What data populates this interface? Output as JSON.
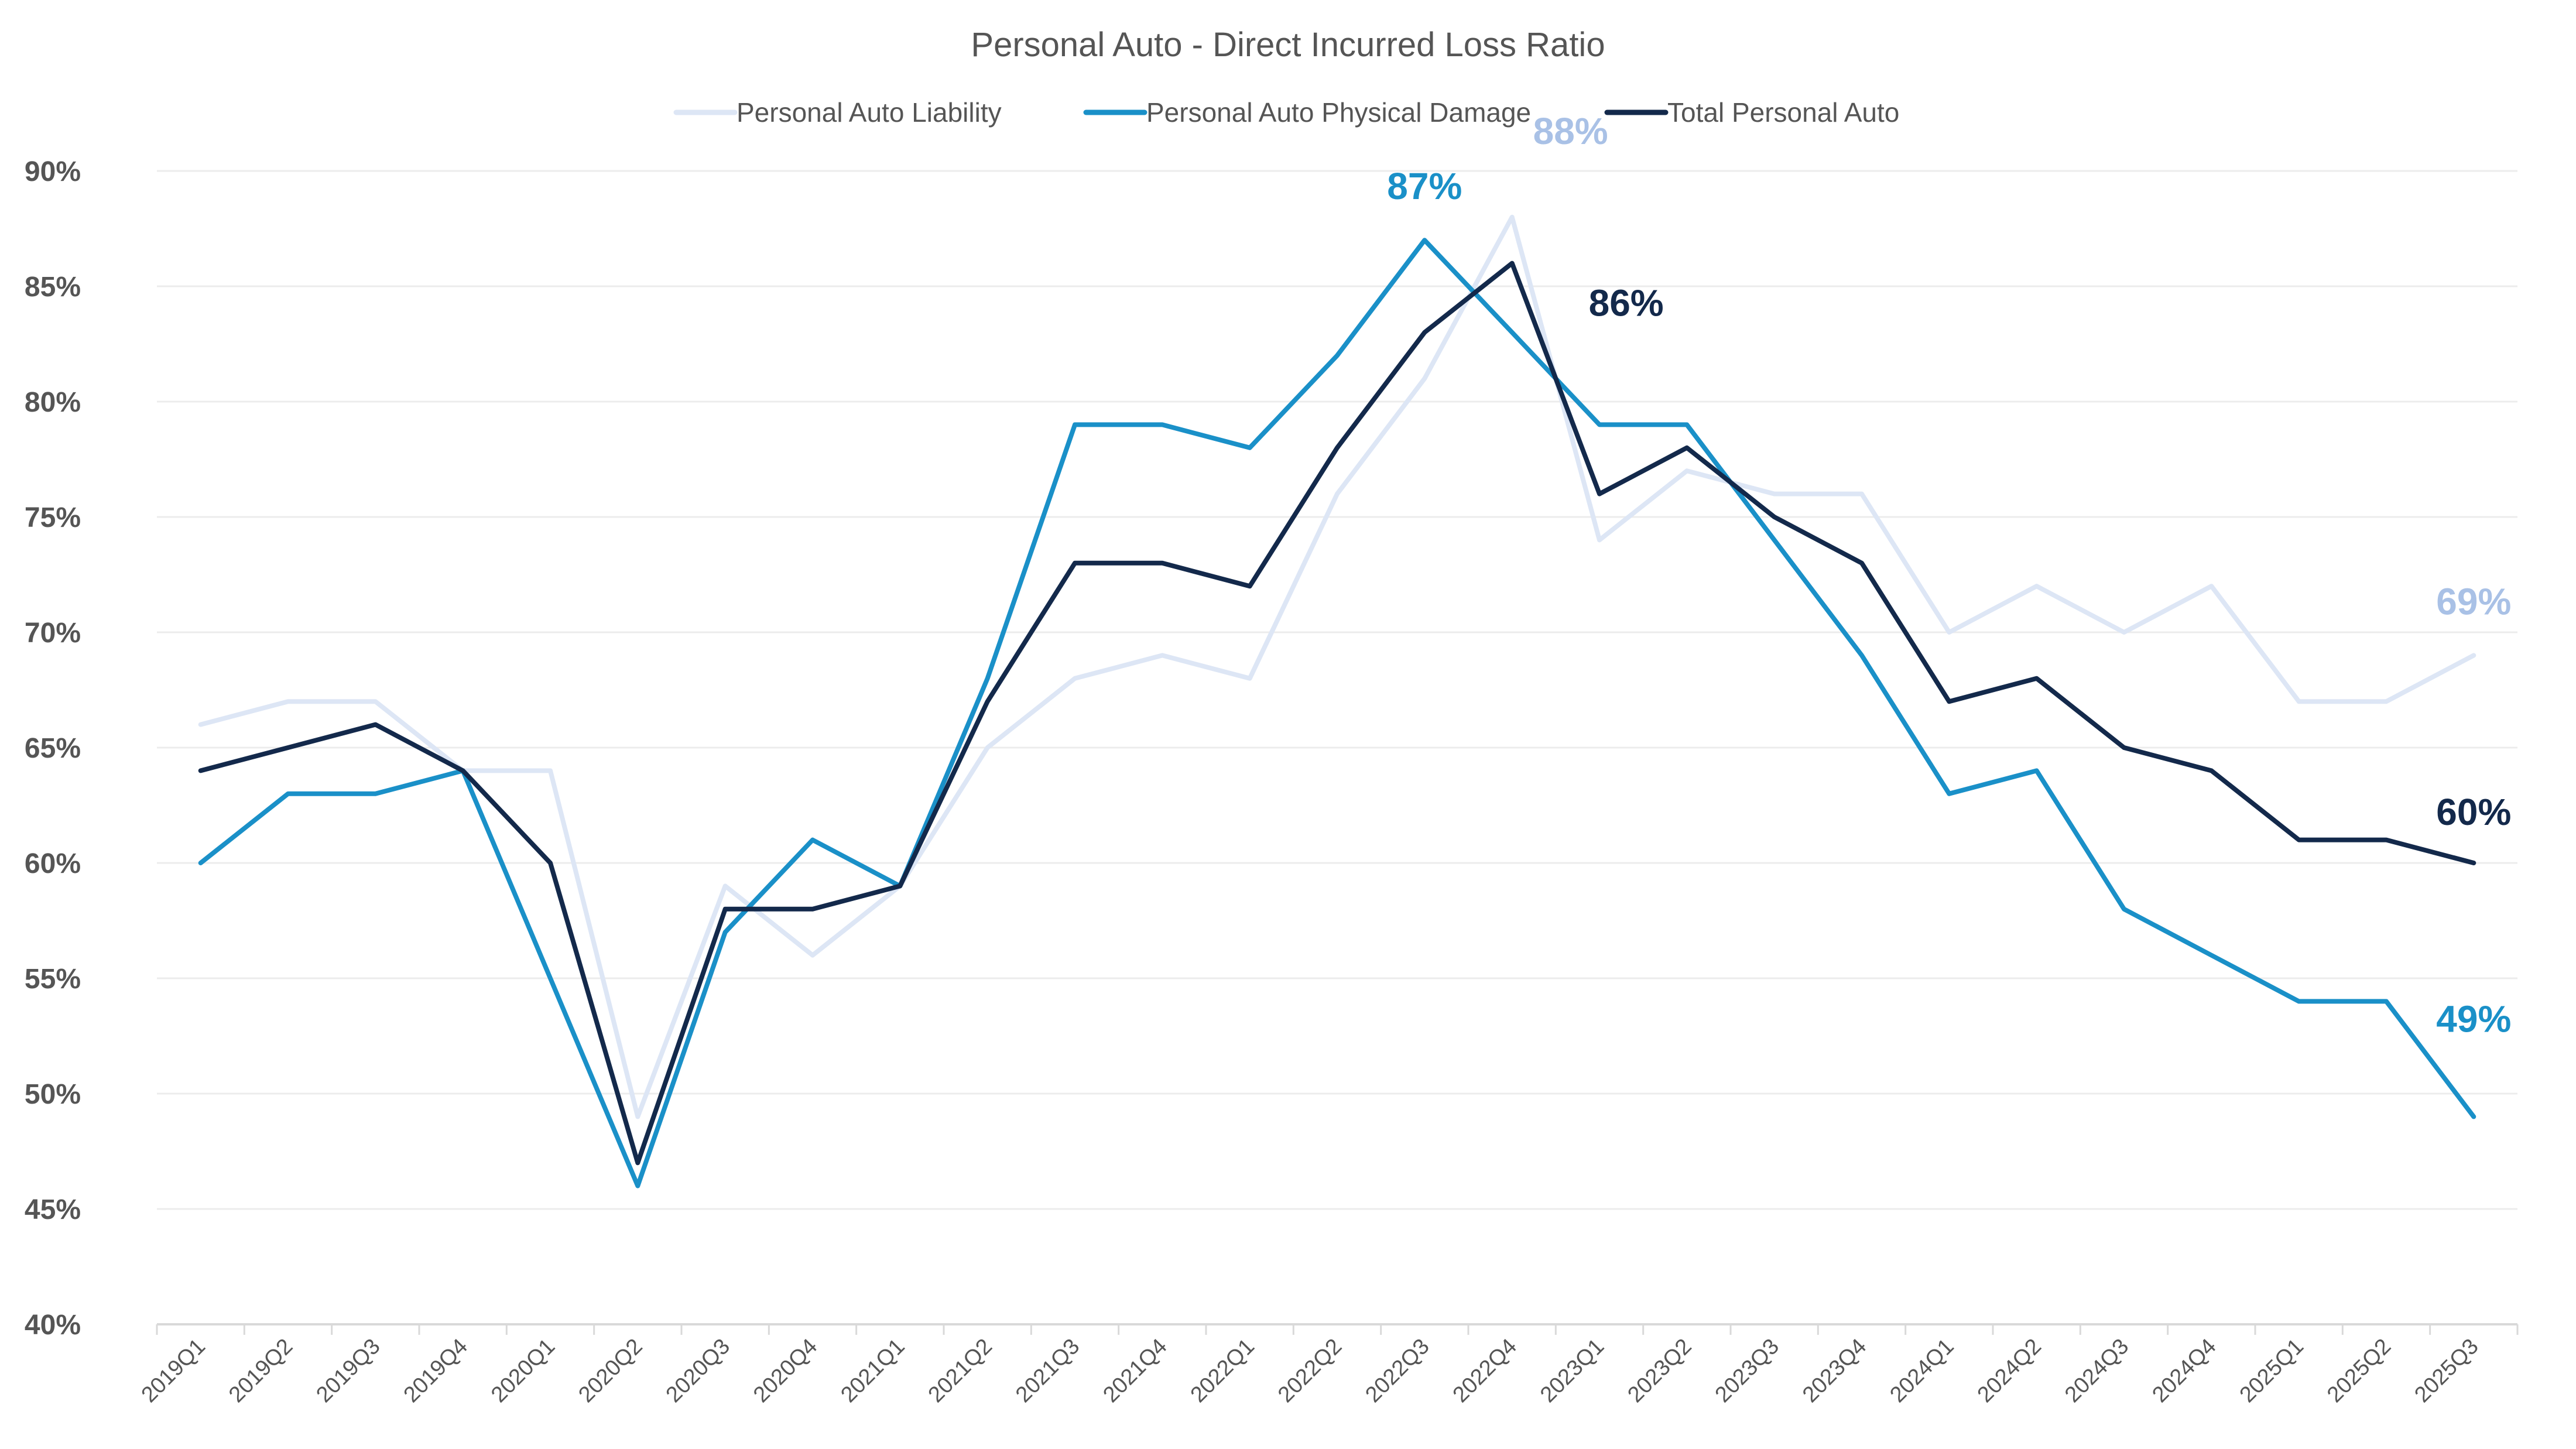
{
  "chart_data": {
    "type": "line",
    "title": "Personal Auto - Direct Incurred Loss Ratio",
    "xlabel": "",
    "ylabel": "",
    "ylim": [
      40,
      90
    ],
    "yticks": [
      40,
      45,
      50,
      55,
      60,
      65,
      70,
      75,
      80,
      85,
      90
    ],
    "ytick_labels": [
      "40%",
      "45%",
      "50%",
      "55%",
      "60%",
      "65%",
      "70%",
      "75%",
      "80%",
      "85%",
      "90%"
    ],
    "grid": true,
    "legend_position": "top-center",
    "categories": [
      "2019Q1",
      "2019Q2",
      "2019Q3",
      "2019Q4",
      "2020Q1",
      "2020Q2",
      "2020Q3",
      "2020Q4",
      "2021Q1",
      "2021Q2",
      "2021Q3",
      "2021Q4",
      "2022Q1",
      "2022Q2",
      "2022Q3",
      "2022Q4",
      "2023Q1",
      "2023Q2",
      "2023Q3",
      "2023Q4",
      "2024Q1",
      "2024Q2",
      "2024Q3",
      "2024Q4",
      "2025Q1",
      "2025Q2",
      "2025Q3"
    ],
    "series": [
      {
        "name": "Personal Auto Liability",
        "color": "#dde6f5",
        "values": [
          66,
          67,
          67,
          64,
          64,
          49,
          59,
          56,
          59,
          65,
          68,
          69,
          68,
          76,
          81,
          88,
          74,
          77,
          76,
          76,
          70,
          72,
          70,
          72,
          67,
          67,
          69
        ],
        "labels": [
          {
            "index": 15,
            "text": "88%"
          },
          {
            "index": 26,
            "text": "69%"
          }
        ],
        "label_color": "#a9c1e6"
      },
      {
        "name": "Personal Auto Physical Damage",
        "color": "#1a90c8",
        "values": [
          60,
          63,
          63,
          64,
          55,
          46,
          57,
          61,
          59,
          68,
          79,
          79,
          78,
          82,
          87,
          83,
          79,
          79,
          74,
          69,
          63,
          64,
          58,
          56,
          54,
          54,
          49
        ],
        "labels": [
          {
            "index": 14,
            "text": "87%"
          },
          {
            "index": 26,
            "text": "49%"
          }
        ],
        "label_color": "#1a90c8"
      },
      {
        "name": "Total Personal Auto",
        "color": "#13294b",
        "values": [
          64,
          65,
          66,
          64,
          60,
          47,
          58,
          58,
          59,
          67,
          73,
          73,
          72,
          78,
          83,
          86,
          76,
          78,
          75,
          73,
          67,
          68,
          65,
          64,
          61,
          61,
          60
        ],
        "labels": [
          {
            "index": 15,
            "text": "86%"
          },
          {
            "index": 26,
            "text": "60%"
          }
        ],
        "label_color": "#13294b"
      }
    ]
  }
}
